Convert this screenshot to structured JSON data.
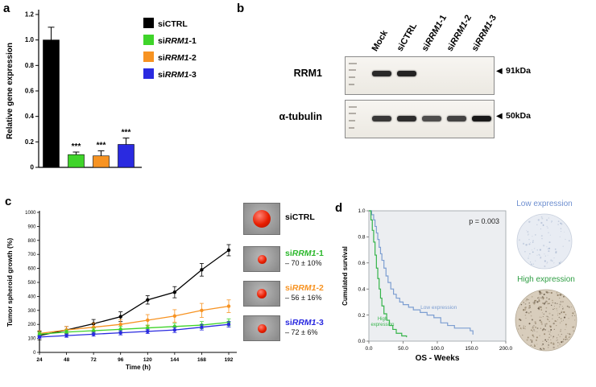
{
  "panels": {
    "a": "a",
    "b": "b",
    "c": "c",
    "d": "d"
  },
  "chart_data": [
    {
      "id": "gene_expression_bar",
      "type": "bar",
      "panel": "a",
      "ylabel": "Relative gene expression",
      "ylim": [
        0,
        1.2
      ],
      "yticks": [
        0,
        0.2,
        0.4,
        0.6,
        0.8,
        1.0,
        1.2
      ],
      "categories": [
        "siCTRL",
        "siRRM1-1",
        "siRRM1-2",
        "siRRM1-3"
      ],
      "values": [
        1.0,
        0.1,
        0.09,
        0.18
      ],
      "errors": [
        0.1,
        0.02,
        0.04,
        0.05
      ],
      "significance": [
        "",
        "***",
        "***",
        "***"
      ],
      "colors": [
        "#000000",
        "#3fd42a",
        "#f79322",
        "#2a2ae0"
      ],
      "legend_position": "upper right",
      "grid": false
    },
    {
      "id": "spheroid_growth_line",
      "type": "line",
      "panel": "c",
      "xlabel": "Time (h)",
      "ylabel": "Tumor spheroid growth (%)",
      "ylim": [
        0,
        1000
      ],
      "yticks": [
        0,
        100,
        200,
        300,
        400,
        500,
        600,
        700,
        800,
        900,
        1000
      ],
      "x": [
        24,
        48,
        72,
        96,
        120,
        144,
        168,
        192
      ],
      "series": [
        {
          "name": "siCTRL",
          "color": "#000000",
          "marker": "circle",
          "values": [
            120,
            160,
            205,
            255,
            375,
            430,
            590,
            730
          ],
          "errors": [
            30,
            25,
            30,
            35,
            30,
            40,
            45,
            40
          ]
        },
        {
          "name": "siRRM1-2",
          "color": "#f79322",
          "marker": "circle",
          "values": [
            135,
            160,
            180,
            200,
            230,
            260,
            300,
            330
          ],
          "errors": [
            20,
            25,
            30,
            35,
            40,
            45,
            50,
            45
          ]
        },
        {
          "name": "siRRM1-1",
          "color": "#3fd42a",
          "marker": "circle",
          "values": [
            130,
            145,
            155,
            165,
            175,
            185,
            195,
            215
          ],
          "errors": [
            15,
            15,
            18,
            20,
            20,
            22,
            25,
            25
          ]
        },
        {
          "name": "siRRM1-3",
          "color": "#2a2ae0",
          "marker": "circle",
          "values": [
            110,
            120,
            130,
            140,
            150,
            160,
            180,
            200
          ],
          "errors": [
            10,
            12,
            14,
            15,
            15,
            18,
            20,
            20
          ]
        }
      ],
      "grid": false
    },
    {
      "id": "overall_survival_km",
      "type": "line",
      "subtype": "kaplan_meier",
      "panel": "d",
      "xlabel": "OS - Weeks",
      "ylabel": "Cumulated survival",
      "annotation": "p = 0.003",
      "xlim": [
        0,
        200
      ],
      "ylim": [
        0,
        1
      ],
      "xticks": [
        "0.0",
        "50.0",
        "100.0",
        "150.0",
        "200.0"
      ],
      "yticks": [
        "0.0",
        "0.2",
        "0.4",
        "0.6",
        "0.8",
        "1.0"
      ],
      "series": [
        {
          "name": "Low expression",
          "color": "#7d9ed1",
          "points": [
            [
              0,
              1.0
            ],
            [
              4,
              0.97
            ],
            [
              7,
              0.93
            ],
            [
              9,
              0.88
            ],
            [
              11,
              0.83
            ],
            [
              13,
              0.78
            ],
            [
              15,
              0.72
            ],
            [
              17,
              0.67
            ],
            [
              19,
              0.62
            ],
            [
              22,
              0.56
            ],
            [
              25,
              0.5
            ],
            [
              28,
              0.45
            ],
            [
              32,
              0.4
            ],
            [
              36,
              0.36
            ],
            [
              40,
              0.33
            ],
            [
              45,
              0.3
            ],
            [
              50,
              0.28
            ],
            [
              58,
              0.26
            ],
            [
              65,
              0.24
            ],
            [
              75,
              0.22
            ],
            [
              85,
              0.2
            ],
            [
              95,
              0.18
            ],
            [
              105,
              0.14
            ],
            [
              115,
              0.12
            ],
            [
              125,
              0.1
            ],
            [
              148,
              0.08
            ],
            [
              152,
              0.05
            ]
          ]
        },
        {
          "name": "High expression",
          "color": "#35b44a",
          "points": [
            [
              0,
              1.0
            ],
            [
              3,
              0.93
            ],
            [
              5,
              0.85
            ],
            [
              7,
              0.76
            ],
            [
              9,
              0.66
            ],
            [
              11,
              0.56
            ],
            [
              13,
              0.48
            ],
            [
              15,
              0.4
            ],
            [
              17,
              0.33
            ],
            [
              19,
              0.27
            ],
            [
              22,
              0.21
            ],
            [
              26,
              0.16
            ],
            [
              30,
              0.12
            ],
            [
              35,
              0.09
            ],
            [
              40,
              0.06
            ],
            [
              48,
              0.04
            ],
            [
              55,
              0.03
            ]
          ]
        }
      ],
      "curve_labels": [
        {
          "text": "High expression",
          "color": "#35b44a"
        },
        {
          "text": "Low expression",
          "color": "#7d9ed1"
        }
      ]
    }
  ],
  "western_blot": {
    "arrow": "◀",
    "lanes": [
      "Mock",
      "siCTRL",
      "siRRM1-1",
      "siRRM1-2",
      "siRRM1-3"
    ],
    "rows": [
      {
        "protein": "RRM1",
        "marker": "91kDa",
        "bands": [
          0.92,
          0.95,
          0,
          0,
          0
        ]
      },
      {
        "protein": "α-tubulin",
        "marker": "50kDa",
        "bands": [
          0.85,
          0.9,
          0.75,
          0.8,
          1.0
        ]
      }
    ]
  },
  "spheroids": [
    {
      "name": "siCTRL",
      "color": "#000000",
      "reduction": "",
      "diameter": 22
    },
    {
      "name": "siRRM1-1",
      "color": "#2db82d",
      "reduction": "– 70 ± 10%",
      "diameter": 11
    },
    {
      "name": "siRRM1-2",
      "color": "#f79322",
      "reduction": "– 56 ± 16%",
      "diameter": 12
    },
    {
      "name": "siRRM1-3",
      "color": "#2a2ae0",
      "reduction": "– 72 ± 6%",
      "diameter": 11
    }
  ],
  "histology": [
    {
      "label": "Low expression",
      "label_color": "#6e8fd0",
      "fill": "#e8ecf3",
      "stroke": "#c7cfdd",
      "speckles": [
        "#b5c1d6",
        "#9fb0cc"
      ],
      "density": 90
    },
    {
      "label": "High expression",
      "label_color": "#2f9e44",
      "fill": "#d8cdbc",
      "stroke": "#b3a894",
      "speckles": [
        "#8a795f",
        "#5f5140"
      ],
      "density": 260
    }
  ]
}
